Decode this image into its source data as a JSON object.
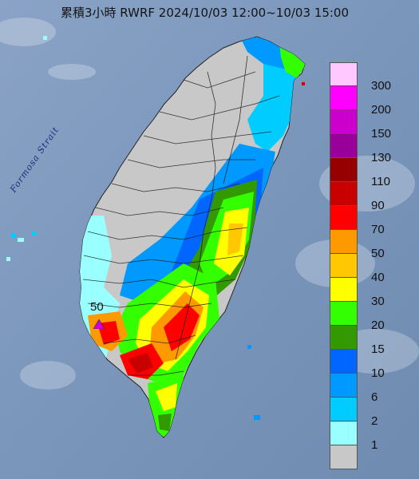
{
  "title": "累積3小時 RWRF 2024/10/03 12:00~10/03 15:00",
  "strait_label": "Formosa Strait",
  "marker": {
    "label": "50",
    "color": "#d000d8"
  },
  "legend": [
    {
      "label": "300",
      "color": "#ffc8ff"
    },
    {
      "label": "200",
      "color": "#ff00ff"
    },
    {
      "label": "150",
      "color": "#cc00cc"
    },
    {
      "label": "130",
      "color": "#990099"
    },
    {
      "label": "110",
      "color": "#960000"
    },
    {
      "label": "90",
      "color": "#c80000"
    },
    {
      "label": "70",
      "color": "#ff0000"
    },
    {
      "label": "50",
      "color": "#ff9900"
    },
    {
      "label": "40",
      "color": "#ffc800"
    },
    {
      "label": "30",
      "color": "#ffff00"
    },
    {
      "label": "20",
      "color": "#33ff00"
    },
    {
      "label": "15",
      "color": "#339900"
    },
    {
      "label": "10",
      "color": "#0066ff"
    },
    {
      "label": "6",
      "color": "#0099ff"
    },
    {
      "label": "2",
      "color": "#00ccff"
    },
    {
      "label": "1",
      "color": "#99ffff"
    },
    {
      "label": "",
      "color": "#c8c8c8"
    }
  ]
}
